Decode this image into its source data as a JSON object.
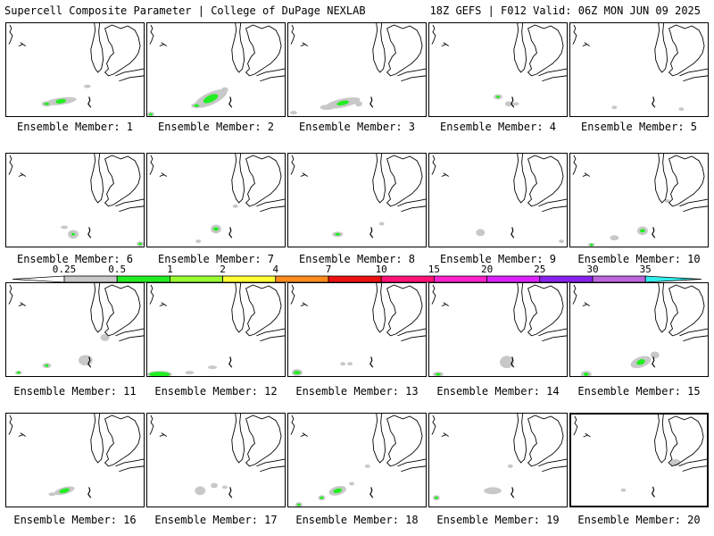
{
  "header": {
    "left": "Supercell Composite Parameter | College of DuPage NEXLAB",
    "right": "18Z GEFS | F012 Valid: 06Z MON JUN 09 2025"
  },
  "colorbar": {
    "ticks": [
      "0.25",
      "0.5",
      "1",
      "2",
      "4",
      "7",
      "10",
      "15",
      "20",
      "25",
      "30",
      "35"
    ],
    "colors": [
      "#ffffff",
      "#c8c8c8",
      "#22ee22",
      "#99ff33",
      "#ffff33",
      "#ff8c1a",
      "#ee1111",
      "#ff1177",
      "#ff22cc",
      "#dd22ff",
      "#8822ee",
      "#bb66dd",
      "#33eeee"
    ]
  },
  "panels": [
    {
      "label": "Ensemble Member: 1"
    },
    {
      "label": "Ensemble Member: 2"
    },
    {
      "label": "Ensemble Member: 3"
    },
    {
      "label": "Ensemble Member: 4"
    },
    {
      "label": "Ensemble Member: 5"
    },
    {
      "label": "Ensemble Member: 6"
    },
    {
      "label": "Ensemble Member: 7"
    },
    {
      "label": "Ensemble Member: 8"
    },
    {
      "label": "Ensemble Member: 9"
    },
    {
      "label": "Ensemble Member: 10"
    },
    {
      "label": "Ensemble Member: 11"
    },
    {
      "label": "Ensemble Member: 12"
    },
    {
      "label": "Ensemble Member: 13"
    },
    {
      "label": "Ensemble Member: 14"
    },
    {
      "label": "Ensemble Member: 15"
    },
    {
      "label": "Ensemble Member: 16"
    },
    {
      "label": "Ensemble Member: 17"
    },
    {
      "label": "Ensemble Member: 18"
    },
    {
      "label": "Ensemble Member: 19"
    },
    {
      "label": "Ensemble Member: 20"
    }
  ]
}
